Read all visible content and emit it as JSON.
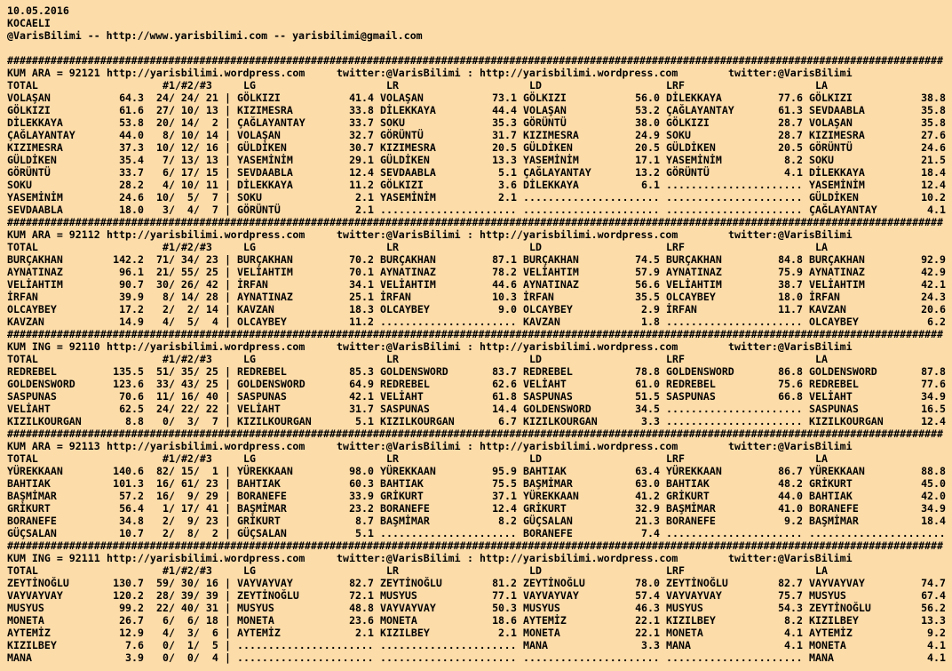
{
  "header": {
    "date": "10.05.2016",
    "city": "KOCAELI",
    "contact": "@VarisBilimi -- http://www.yarisbilimi.com -- yarisbilimi@gmail.com"
  },
  "separator_char": "#",
  "empty_block": "......................",
  "site": "http://yarisbilimi.wordpress.com",
  "twitter": "twitter:@VarisBilimi",
  "twitter_sep": ":",
  "columns": {
    "total": "TOTAL",
    "places": "#1/#2/#3",
    "lg": "LG",
    "lr": "LR",
    "ld": "LD",
    "lrf": "LRF",
    "la": "LA"
  },
  "sections": [
    {
      "race": "KUM ARA = 92121",
      "rows": [
        {
          "name": "VOLAŞAN",
          "total": "64.3",
          "places": [
            24,
            24,
            21
          ],
          "blocks": [
            [
              "GÖLKIZI",
              "41.4"
            ],
            [
              "VOLAŞAN",
              "73.1"
            ],
            [
              "GÖLKIZI",
              "56.0"
            ],
            [
              "DİLEKKAYA",
              "77.6"
            ],
            [
              "GÖLKIZI",
              "38.8"
            ]
          ]
        },
        {
          "name": "GÖLKIZI",
          "total": "61.6",
          "places": [
            27,
            10,
            13
          ],
          "blocks": [
            [
              "KIZIMESRA",
              "33.8"
            ],
            [
              "DİLEKKAYA",
              "44.4"
            ],
            [
              "VOLAŞAN",
              "53.2"
            ],
            [
              "ÇAĞLAYANTAY",
              "61.3"
            ],
            [
              "SEVDAABLA",
              "35.8"
            ]
          ]
        },
        {
          "name": "DİLEKKAYA",
          "total": "53.8",
          "places": [
            20,
            14,
            2
          ],
          "blocks": [
            [
              "ÇAĞLAYANTAY",
              "33.7"
            ],
            [
              "SOKU",
              "35.3"
            ],
            [
              "GÖRÜNTÜ",
              "38.0"
            ],
            [
              "GÖLKIZI",
              "28.7"
            ],
            [
              "VOLAŞAN",
              "35.8"
            ]
          ]
        },
        {
          "name": "ÇAĞLAYANTAY",
          "total": "44.0",
          "places": [
            8,
            10,
            14
          ],
          "blocks": [
            [
              "VOLAŞAN",
              "32.7"
            ],
            [
              "GÖRÜNTÜ",
              "31.7"
            ],
            [
              "KIZIMESRA",
              "24.9"
            ],
            [
              "SOKU",
              "28.7"
            ],
            [
              "KIZIMESRA",
              "27.6"
            ]
          ]
        },
        {
          "name": "KIZIMESRA",
          "total": "37.3",
          "places": [
            10,
            12,
            16
          ],
          "blocks": [
            [
              "GÜLDİKEN",
              "30.7"
            ],
            [
              "KIZIMESRA",
              "20.5"
            ],
            [
              "GÜLDİKEN",
              "20.5"
            ],
            [
              "GÜLDİKEN",
              "20.5"
            ],
            [
              "GÖRÜNTÜ",
              "24.6"
            ]
          ]
        },
        {
          "name": "GÜLDİKEN",
          "total": "35.4",
          "places": [
            7,
            13,
            13
          ],
          "blocks": [
            [
              "YASEMİNİM",
              "29.1"
            ],
            [
              "GÜLDİKEN",
              "13.3"
            ],
            [
              "YASEMİNİM",
              "17.1"
            ],
            [
              "YASEMİNİM",
              "8.2"
            ],
            [
              "SOKU",
              "21.5"
            ]
          ]
        },
        {
          "name": "GÖRÜNTÜ",
          "total": "33.7",
          "places": [
            6,
            17,
            15
          ],
          "blocks": [
            [
              "SEVDAABLA",
              "12.4"
            ],
            [
              "SEVDAABLA",
              "5.1"
            ],
            [
              "ÇAĞLAYANTAY",
              "13.2"
            ],
            [
              "GÖRÜNTÜ",
              "4.1"
            ],
            [
              "DİLEKKAYA",
              "18.4"
            ]
          ]
        },
        {
          "name": "SOKU",
          "total": "28.2",
          "places": [
            4,
            10,
            11
          ],
          "blocks": [
            [
              "DİLEKKAYA",
              "11.2"
            ],
            [
              "GÖLKIZI",
              "3.6"
            ],
            [
              "DİLEKKAYA",
              "6.1"
            ],
            null,
            [
              "YASEMİNİM",
              "12.4"
            ]
          ]
        },
        {
          "name": "YASEMİNİM",
          "total": "24.6",
          "places": [
            10,
            5,
            7
          ],
          "blocks": [
            [
              "SOKU",
              "2.1"
            ],
            [
              "YASEMİNİM",
              "2.1"
            ],
            null,
            null,
            [
              "GÜLDİKEN",
              "10.2"
            ]
          ]
        },
        {
          "name": "SEVDAABLA",
          "total": "18.0",
          "places": [
            3,
            4,
            7
          ],
          "blocks": [
            [
              "GÖRÜNTÜ",
              "2.1"
            ],
            null,
            null,
            null,
            [
              "ÇAĞLAYANTAY",
              "4.1"
            ]
          ]
        }
      ]
    },
    {
      "race": "KUM ARA = 92112",
      "rows": [
        {
          "name": "BURÇAKHAN",
          "total": "142.2",
          "places": [
            71,
            34,
            23
          ],
          "blocks": [
            [
              "BURÇAKHAN",
              "70.2"
            ],
            [
              "BURÇAKHAN",
              "87.1"
            ],
            [
              "BURÇAKHAN",
              "74.5"
            ],
            [
              "BURÇAKHAN",
              "84.8"
            ],
            [
              "BURÇAKHAN",
              "92.9"
            ]
          ]
        },
        {
          "name": "AYNATINAZ",
          "total": "96.1",
          "places": [
            21,
            55,
            25
          ],
          "blocks": [
            [
              "VELİAHTIM",
              "70.1"
            ],
            [
              "AYNATINAZ",
              "78.2"
            ],
            [
              "VELİAHTIM",
              "57.9"
            ],
            [
              "AYNATINAZ",
              "75.9"
            ],
            [
              "AYNATINAZ",
              "42.9"
            ]
          ]
        },
        {
          "name": "VELİAHTIM",
          "total": "90.7",
          "places": [
            30,
            26,
            42
          ],
          "blocks": [
            [
              "İRFAN",
              "34.1"
            ],
            [
              "VELİAHTIM",
              "44.6"
            ],
            [
              "AYNATINAZ",
              "56.6"
            ],
            [
              "VELİAHTIM",
              "38.7"
            ],
            [
              "VELİAHTIM",
              "42.1"
            ]
          ]
        },
        {
          "name": "İRFAN",
          "total": "39.9",
          "places": [
            8,
            14,
            28
          ],
          "blocks": [
            [
              "AYNATINAZ",
              "25.1"
            ],
            [
              "İRFAN",
              "10.3"
            ],
            [
              "İRFAN",
              "35.5"
            ],
            [
              "OLCAYBEY",
              "18.0"
            ],
            [
              "İRFAN",
              "24.3"
            ]
          ]
        },
        {
          "name": "OLCAYBEY",
          "total": "17.2",
          "places": [
            2,
            2,
            14
          ],
          "blocks": [
            [
              "KAVZAN",
              "18.3"
            ],
            [
              "OLCAYBEY",
              "9.0"
            ],
            [
              "OLCAYBEY",
              "2.9"
            ],
            [
              "İRFAN",
              "11.7"
            ],
            [
              "KAVZAN",
              "20.6"
            ]
          ]
        },
        {
          "name": "KAVZAN",
          "total": "14.9",
          "places": [
            4,
            5,
            4
          ],
          "blocks": [
            [
              "OLCAYBEY",
              "11.2"
            ],
            null,
            [
              "KAVZAN",
              "1.8"
            ],
            null,
            [
              "OLCAYBEY",
              "6.2"
            ]
          ]
        }
      ]
    },
    {
      "race": "KUM ING = 92110",
      "rows": [
        {
          "name": "REDREBEL",
          "total": "135.5",
          "places": [
            51,
            35,
            25
          ],
          "blocks": [
            [
              "REDREBEL",
              "85.3"
            ],
            [
              "GOLDENSWORD",
              "83.7"
            ],
            [
              "REDREBEL",
              "78.8"
            ],
            [
              "GOLDENSWORD",
              "86.8"
            ],
            [
              "GOLDENSWORD",
              "87.8"
            ]
          ]
        },
        {
          "name": "GOLDENSWORD",
          "total": "123.6",
          "places": [
            33,
            43,
            25
          ],
          "blocks": [
            [
              "GOLDENSWORD",
              "64.9"
            ],
            [
              "REDREBEL",
              "62.6"
            ],
            [
              "VELİAHT",
              "61.0"
            ],
            [
              "REDREBEL",
              "75.6"
            ],
            [
              "REDREBEL",
              "77.6"
            ]
          ]
        },
        {
          "name": "SASPUNAS",
          "total": "70.6",
          "places": [
            11,
            16,
            40
          ],
          "blocks": [
            [
              "SASPUNAS",
              "42.1"
            ],
            [
              "VELİAHT",
              "61.8"
            ],
            [
              "SASPUNAS",
              "51.5"
            ],
            [
              "SASPUNAS",
              "66.8"
            ],
            [
              "VELİAHT",
              "34.9"
            ]
          ]
        },
        {
          "name": "VELİAHT",
          "total": "62.5",
          "places": [
            24,
            22,
            22
          ],
          "blocks": [
            [
              "VELİAHT",
              "31.7"
            ],
            [
              "SASPUNAS",
              "14.4"
            ],
            [
              "GOLDENSWORD",
              "34.5"
            ],
            null,
            [
              "SASPUNAS",
              "16.5"
            ]
          ]
        },
        {
          "name": "KIZILKOURGAN",
          "total": "8.8",
          "places": [
            0,
            3,
            7
          ],
          "blocks": [
            [
              "KIZILKOURGAN",
              "5.1"
            ],
            [
              "KIZILKOURGAN",
              "6.7"
            ],
            [
              "KIZILKOURGAN",
              "3.3"
            ],
            null,
            [
              "KIZILKOURGAN",
              "12.4"
            ]
          ]
        }
      ]
    },
    {
      "race": "KUM ARA = 92113",
      "rows": [
        {
          "name": "YÜREKKAAN",
          "total": "140.6",
          "places": [
            82,
            15,
            1
          ],
          "blocks": [
            [
              "YÜREKKAAN",
              "98.0"
            ],
            [
              "YÜREKKAAN",
              "95.9"
            ],
            [
              "BAHTIAK",
              "63.4"
            ],
            [
              "YÜREKKAAN",
              "86.7"
            ],
            [
              "YÜREKKAAN",
              "88.8"
            ]
          ]
        },
        {
          "name": "BAHTIAK",
          "total": "101.3",
          "places": [
            16,
            61,
            23
          ],
          "blocks": [
            [
              "BAHTIAK",
              "60.3"
            ],
            [
              "BAHTIAK",
              "75.5"
            ],
            [
              "BAŞMİMAR",
              "63.0"
            ],
            [
              "BAHTIAK",
              "48.2"
            ],
            [
              "GRİKURT",
              "45.0"
            ]
          ]
        },
        {
          "name": "BAŞMİMAR",
          "total": "57.2",
          "places": [
            16,
            9,
            29
          ],
          "blocks": [
            [
              "BORANEFE",
              "33.9"
            ],
            [
              "GRİKURT",
              "37.1"
            ],
            [
              "YÜREKKAAN",
              "41.2"
            ],
            [
              "GRİKURT",
              "44.0"
            ],
            [
              "BAHTIAK",
              "42.0"
            ]
          ]
        },
        {
          "name": "GRİKURT",
          "total": "56.4",
          "places": [
            1,
            17,
            41
          ],
          "blocks": [
            [
              "BAŞMİMAR",
              "23.2"
            ],
            [
              "BORANEFE",
              "12.4"
            ],
            [
              "GRİKURT",
              "32.9"
            ],
            [
              "BAŞMİMAR",
              "41.0"
            ],
            [
              "BORANEFE",
              "34.9"
            ]
          ]
        },
        {
          "name": "BORANEFE",
          "total": "34.8",
          "places": [
            2,
            9,
            23
          ],
          "blocks": [
            [
              "GRİKURT",
              "8.7"
            ],
            [
              "BAŞMİMAR",
              "8.2"
            ],
            [
              "GÜÇSALAN",
              "21.3"
            ],
            [
              "BORANEFE",
              "9.2"
            ],
            [
              "BAŞMİMAR",
              "18.4"
            ]
          ]
        },
        {
          "name": "GÜÇSALAN",
          "total": "10.7",
          "places": [
            2,
            8,
            2
          ],
          "blocks": [
            [
              "GÜÇSALAN",
              "5.1"
            ],
            null,
            [
              "BORANEFE",
              "7.4"
            ],
            null,
            null
          ]
        }
      ]
    },
    {
      "race": "KUM ING = 92111",
      "rows": [
        {
          "name": "ZEYTİNOĞLU",
          "total": "130.7",
          "places": [
            59,
            30,
            16
          ],
          "blocks": [
            [
              "VAYVAYVAY",
              "82.7"
            ],
            [
              "ZEYTİNOĞLU",
              "81.2"
            ],
            [
              "ZEYTİNOĞLU",
              "78.0"
            ],
            [
              "ZEYTİNOĞLU",
              "82.7"
            ],
            [
              "VAYVAYVAY",
              "74.7"
            ]
          ]
        },
        {
          "name": "VAYVAYVAY",
          "total": "120.2",
          "places": [
            28,
            39,
            39
          ],
          "blocks": [
            [
              "ZEYTİNOĞLU",
              "72.1"
            ],
            [
              "MUSYUS",
              "77.1"
            ],
            [
              "VAYVAYVAY",
              "57.4"
            ],
            [
              "VAYVAYVAY",
              "75.7"
            ],
            [
              "MUSYUS",
              "67.4"
            ]
          ]
        },
        {
          "name": "MUSYUS",
          "total": "99.2",
          "places": [
            22,
            40,
            31
          ],
          "blocks": [
            [
              "MUSYUS",
              "48.8"
            ],
            [
              "VAYVAYVAY",
              "50.3"
            ],
            [
              "MUSYUS",
              "46.3"
            ],
            [
              "MUSYUS",
              "54.3"
            ],
            [
              "ZEYTİNOĞLU",
              "56.2"
            ]
          ]
        },
        {
          "name": "MONETA",
          "total": "26.7",
          "places": [
            6,
            6,
            18
          ],
          "blocks": [
            [
              "MONETA",
              "23.6"
            ],
            [
              "MONETA",
              "18.6"
            ],
            [
              "AYTEMİZ",
              "22.1"
            ],
            [
              "KIZILBEY",
              "8.2"
            ],
            [
              "KIZILBEY",
              "13.3"
            ]
          ]
        },
        {
          "name": "AYTEMİZ",
          "total": "12.9",
          "places": [
            4,
            3,
            6
          ],
          "blocks": [
            [
              "AYTEMİZ",
              "2.1"
            ],
            [
              "KIZILBEY",
              "2.1"
            ],
            [
              "MONETA",
              "22.1"
            ],
            [
              "MONETA",
              "4.1"
            ],
            [
              "AYTEMİZ",
              "9.2"
            ]
          ]
        },
        {
          "name": "KIZILBEY",
          "total": "7.6",
          "places": [
            0,
            1,
            5
          ],
          "blocks": [
            null,
            null,
            [
              "MANA",
              "3.3"
            ],
            [
              "MANA",
              "4.1"
            ],
            [
              "MONETA",
              "4.1"
            ]
          ]
        },
        {
          "name": "MANA",
          "total": "3.9",
          "places": [
            0,
            0,
            4
          ],
          "blocks": [
            null,
            null,
            null,
            null,
            [
              "MANA",
              "4.1"
            ]
          ]
        }
      ]
    }
  ]
}
